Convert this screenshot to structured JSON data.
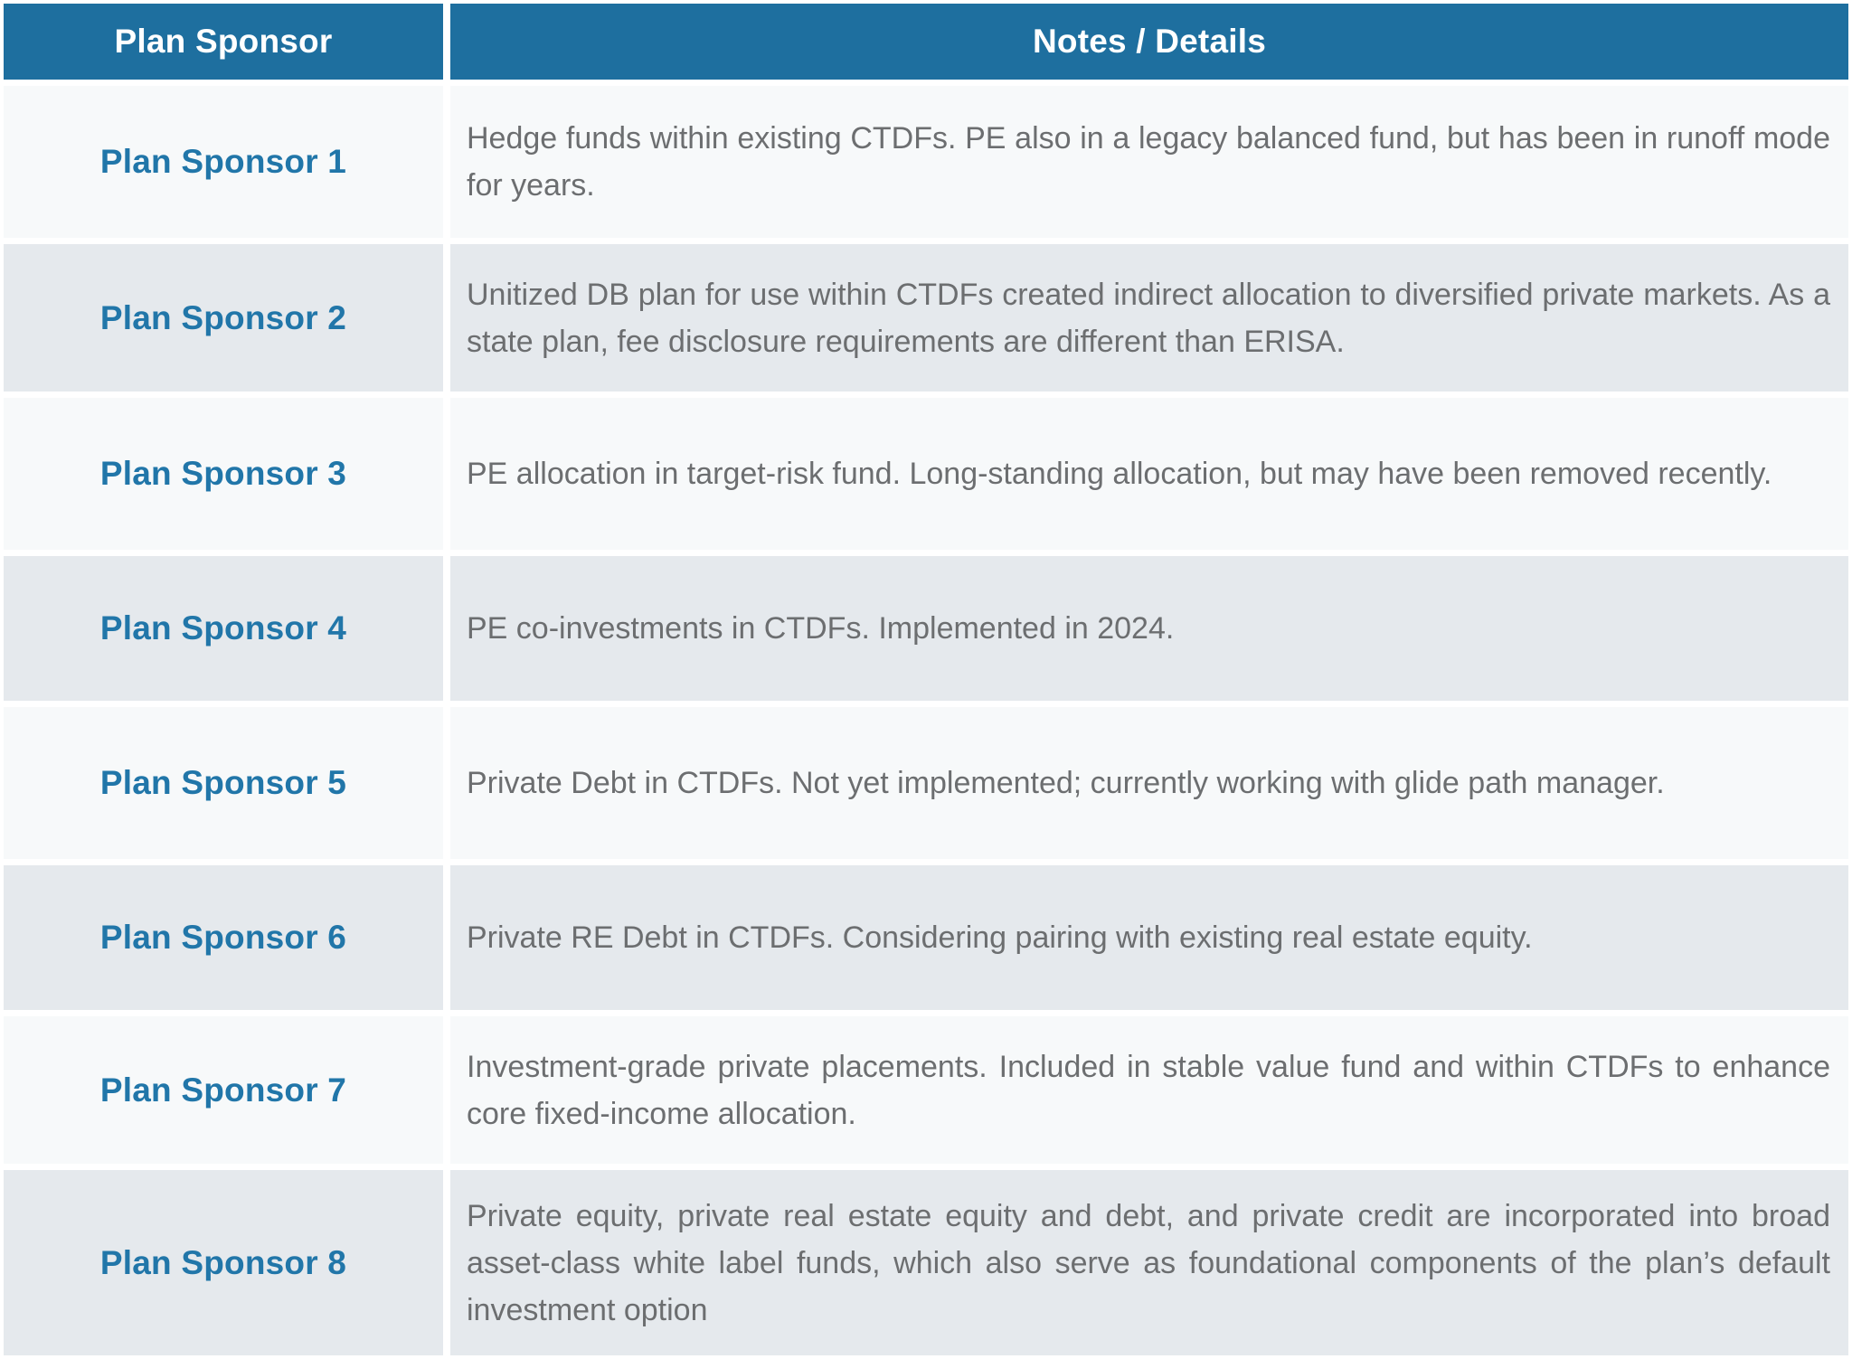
{
  "colors": {
    "header_bg": "#1E6F9F",
    "header_text": "#FFFFFF",
    "sponsor_text": "#2176A9",
    "notes_text": "#6C6E70",
    "row_light": "#F7F9FA",
    "row_dark": "#E5E9ED",
    "separator": "#FFFFFF"
  },
  "table": {
    "columns": [
      {
        "label": "Plan Sponsor"
      },
      {
        "label": "Notes / Details"
      }
    ],
    "rows": [
      {
        "sponsor": "Plan Sponsor 1",
        "notes": "Hedge funds within existing CTDFs. PE also in a legacy balanced fund, but has been in runoff mode for years."
      },
      {
        "sponsor": "Plan Sponsor 2",
        "notes": "Unitized DB plan for use within CTDFs created indirect allocation to diversified private markets. As a state plan, fee disclosure requirements are different than ERISA."
      },
      {
        "sponsor": "Plan Sponsor 3",
        "notes": "PE allocation in target-risk fund. Long-standing allocation, but may have been removed recently."
      },
      {
        "sponsor": "Plan Sponsor 4",
        "notes": "PE co-investments in CTDFs. Implemented in 2024."
      },
      {
        "sponsor": "Plan Sponsor 5",
        "notes": "Private Debt in CTDFs. Not yet implemented; currently working with glide path manager."
      },
      {
        "sponsor": "Plan Sponsor 6",
        "notes": "Private RE Debt in CTDFs. Considering pairing with existing real estate equity."
      },
      {
        "sponsor": "Plan Sponsor 7",
        "notes": "Investment-grade private placements. Included in stable value fund and within CTDFs to enhance core fixed-income allocation."
      },
      {
        "sponsor": "Plan Sponsor 8",
        "notes": "Private equity, private real estate equity and debt, and private credit are incorporated into broad asset-class white label funds, which also serve as foundational components of the plan’s default investment option"
      }
    ]
  }
}
